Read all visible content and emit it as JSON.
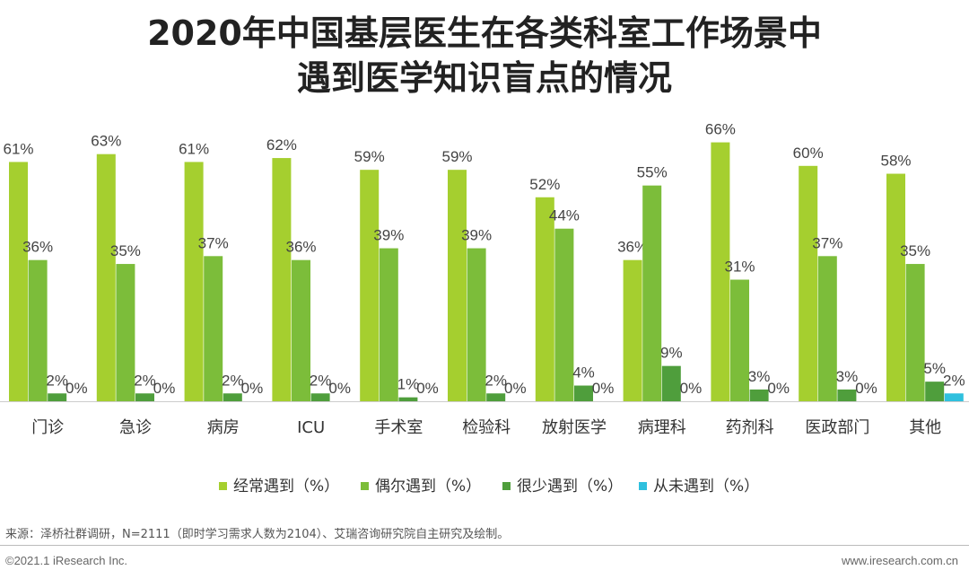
{
  "title_line1": "2020年中国基层医生在各类科室工作场景中",
  "title_line2": "遇到医学知识盲点的情况",
  "chart_data": {
    "type": "bar",
    "categories": [
      "门诊",
      "急诊",
      "病房",
      "ICU",
      "手术室",
      "检验科",
      "放射医学",
      "病理科",
      "药剂科",
      "医政部门",
      "其他"
    ],
    "series": [
      {
        "name": "经常遇到（%）",
        "color": "#a5cf2f",
        "values": [
          61,
          63,
          61,
          62,
          59,
          59,
          52,
          36,
          66,
          60,
          58
        ]
      },
      {
        "name": "偶尔遇到（%）",
        "color": "#7cbd3a",
        "values": [
          36,
          35,
          37,
          36,
          39,
          39,
          44,
          55,
          31,
          37,
          35
        ]
      },
      {
        "name": "很少遇到（%）",
        "color": "#4f9e3c",
        "values": [
          2,
          2,
          2,
          2,
          1,
          2,
          4,
          9,
          3,
          3,
          5
        ]
      },
      {
        "name": "从未遇到（%）",
        "color": "#2fc0de",
        "values": [
          0,
          0,
          0,
          0,
          0,
          0,
          0,
          0,
          0,
          0,
          2
        ]
      }
    ],
    "value_suffix": "%",
    "ylim": [
      0,
      70
    ],
    "grid": false,
    "legend_position": "bottom"
  },
  "source": "来源：泽桥社群调研，N=2111（即时学习需求人数为2104）、艾瑞咨询研究院自主研究及绘制。",
  "copyright": "©2021.1 iResearch Inc.",
  "website": "www.iresearch.com.cn"
}
